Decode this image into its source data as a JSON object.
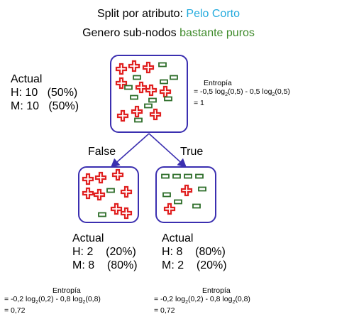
{
  "title": {
    "line1_prefix": "Split por atributo: ",
    "line1_attr": "Pelo Corto",
    "line2_prefix": "Genero sub-nodos ",
    "line2_highlight": "bastante puros"
  },
  "colors": {
    "attr": "#22aadd",
    "highlight": "#3e8a2a",
    "box_border": "#3b2fb0",
    "cross": "#e02020",
    "dash": "#2e6e2a"
  },
  "root": {
    "actual_label": "Actual",
    "h_line": "H: 10   (50%)",
    "m_line": "M: 10   (50%)",
    "entropy_label": "Entropía",
    "entropy_formula_prefix": "= -0,5 log",
    "entropy_formula_rest": "(0,5) - 0,5 log",
    "entropy_formula_end": "(0,5)",
    "log_base": "2",
    "entropy_value": "= 1",
    "crosses": 10,
    "dashes": 10
  },
  "branches": {
    "false_label": "False",
    "true_label": "True"
  },
  "left": {
    "actual_label": "Actual",
    "h_line": "H: 2    (20%)",
    "m_line": "M: 8    (80%)",
    "entropy_label": "Entropía",
    "entropy_formula_prefix": "= -0,2 log",
    "entropy_formula_rest": "(0,2) - 0,8 log",
    "entropy_formula_end": "(0,8)",
    "log_base": "2",
    "entropy_value": "= 0,72",
    "crosses": 8,
    "dashes": 2
  },
  "right": {
    "actual_label": "Actual",
    "h_line": "H: 8    (80%)",
    "m_line": "M: 2    (20%)",
    "entropy_label": "Entropía",
    "entropy_formula_prefix": "= -0,2 log",
    "entropy_formula_rest": "(0,2) - 0,8 log",
    "entropy_formula_end": "(0,8)",
    "log_base": "2",
    "entropy_value": "= 0,72",
    "crosses": 2,
    "dashes": 8
  }
}
